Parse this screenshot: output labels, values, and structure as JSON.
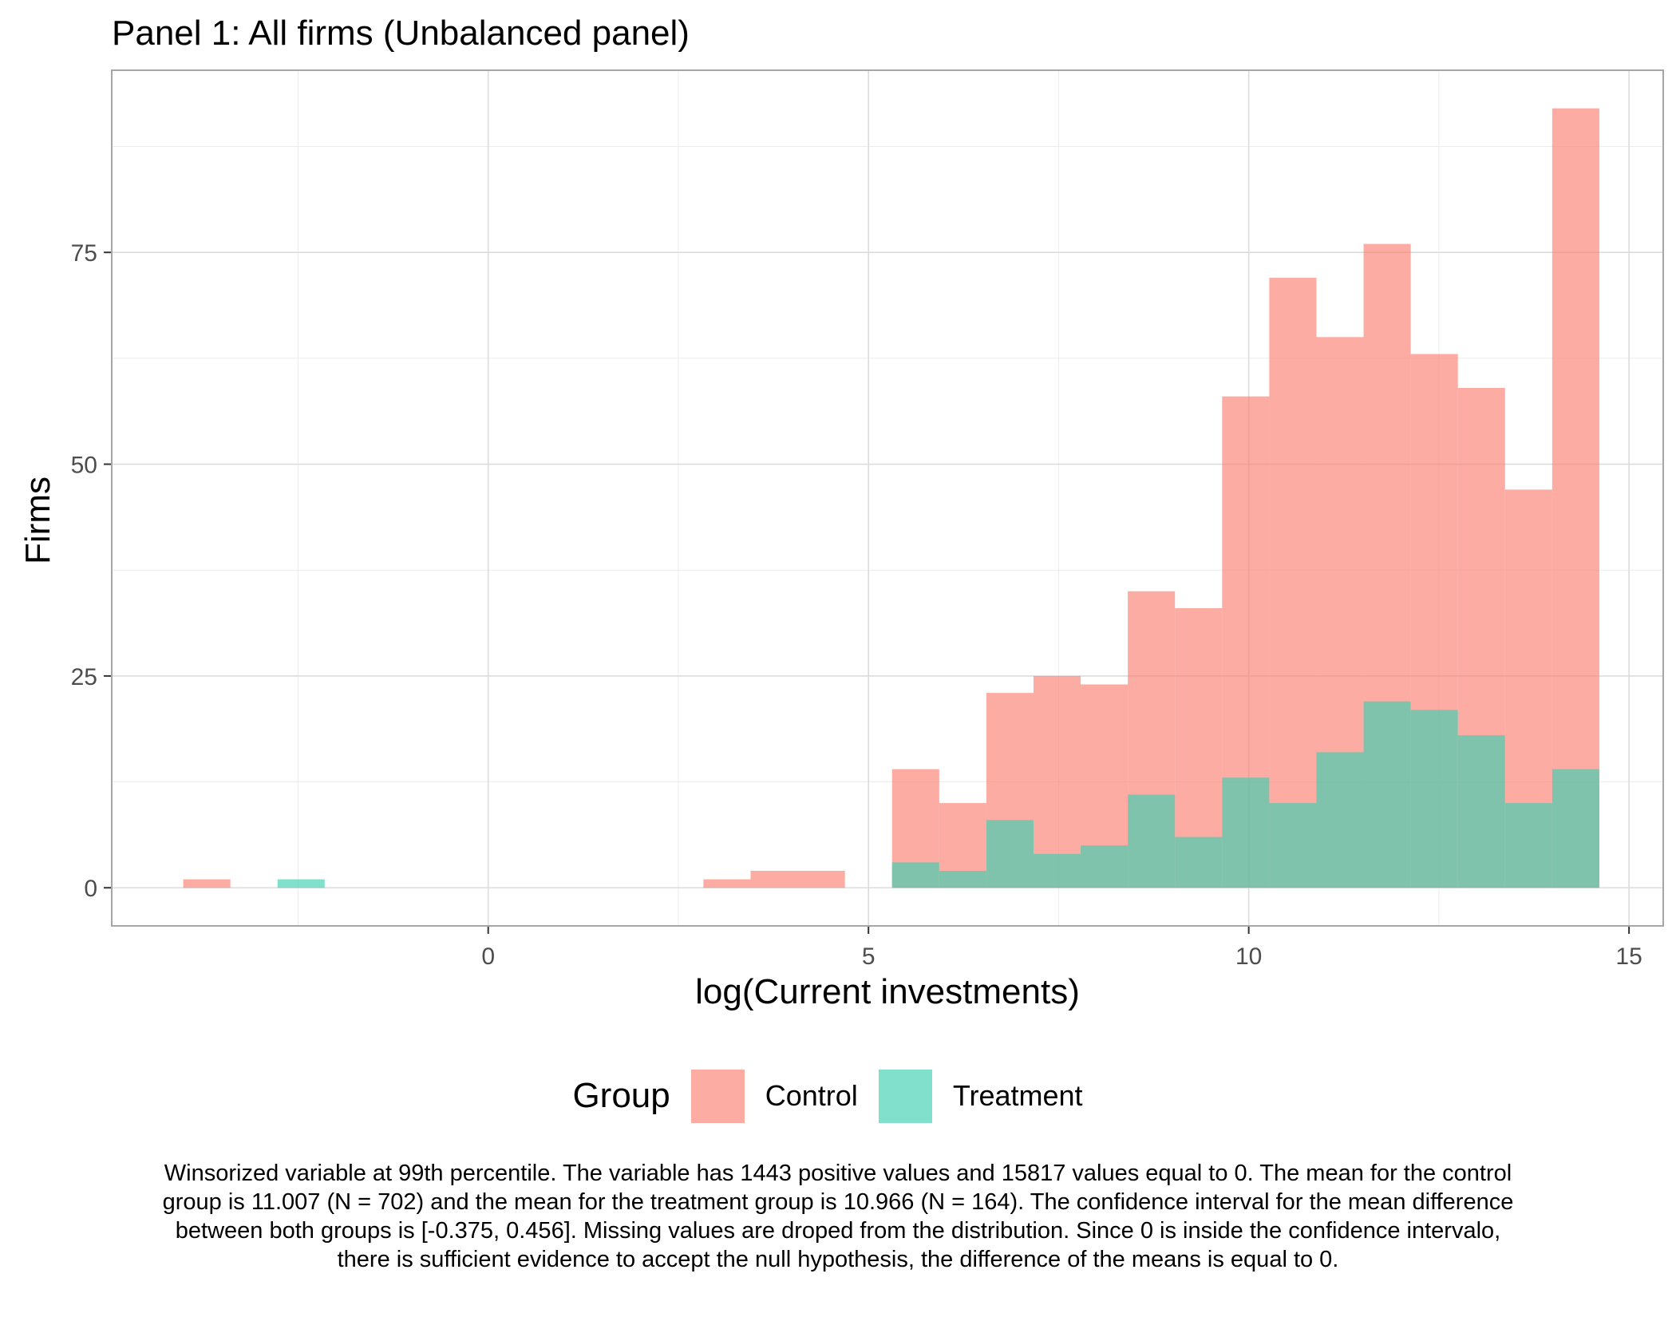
{
  "chart_data": {
    "type": "bar",
    "title": "Panel 1: All firms (Unbalanced panel)",
    "xlabel": "log(Current investments)",
    "ylabel": "Firms",
    "xlim": [
      -4.95,
      15.45
    ],
    "ylim": [
      -4.5,
      96.5
    ],
    "x_ticks": [
      0,
      5,
      10,
      15
    ],
    "y_ticks": [
      0,
      25,
      50,
      75
    ],
    "grid": true,
    "legend_title": "Group",
    "legend_position": "bottom",
    "bin_width": 0.62,
    "series": [
      {
        "name": "Control",
        "color": "#FA8072",
        "bins": [
          {
            "x": -3.7,
            "count": 1
          },
          {
            "x": 3.14,
            "count": 1
          },
          {
            "x": 3.76,
            "count": 2
          },
          {
            "x": 4.38,
            "count": 2
          },
          {
            "x": 5.62,
            "count": 14
          },
          {
            "x": 6.24,
            "count": 10
          },
          {
            "x": 6.86,
            "count": 23
          },
          {
            "x": 7.48,
            "count": 25
          },
          {
            "x": 8.1,
            "count": 24
          },
          {
            "x": 8.72,
            "count": 35
          },
          {
            "x": 9.34,
            "count": 33
          },
          {
            "x": 9.96,
            "count": 58
          },
          {
            "x": 10.58,
            "count": 72
          },
          {
            "x": 11.2,
            "count": 65
          },
          {
            "x": 11.82,
            "count": 76
          },
          {
            "x": 12.44,
            "count": 63
          },
          {
            "x": 13.06,
            "count": 59
          },
          {
            "x": 13.68,
            "count": 47
          },
          {
            "x": 14.3,
            "count": 92
          }
        ]
      },
      {
        "name": "Treatment",
        "color": "#3CCFB0",
        "bins": [
          {
            "x": -2.46,
            "count": 1
          },
          {
            "x": 5.62,
            "count": 3
          },
          {
            "x": 6.24,
            "count": 2
          },
          {
            "x": 6.86,
            "count": 8
          },
          {
            "x": 7.48,
            "count": 4
          },
          {
            "x": 8.1,
            "count": 5
          },
          {
            "x": 8.72,
            "count": 11
          },
          {
            "x": 9.34,
            "count": 6
          },
          {
            "x": 9.96,
            "count": 13
          },
          {
            "x": 10.58,
            "count": 10
          },
          {
            "x": 11.2,
            "count": 16
          },
          {
            "x": 11.82,
            "count": 22
          },
          {
            "x": 12.44,
            "count": 21
          },
          {
            "x": 13.06,
            "count": 18
          },
          {
            "x": 13.68,
            "count": 10
          },
          {
            "x": 14.3,
            "count": 14
          }
        ]
      }
    ],
    "caption": "Winsorized variable at 99th percentile. The variable has 1443 positive values and 15817 values equal to 0. The mean for the control group is 11.007 (N = 702) and the mean for the treatment group is 10.966 (N = 164). The confidence interval for the mean difference between both groups is [-0.375, 0.456]. Missing values are droped from the distribution. Since 0 is inside the confidence intervalo, there is sufficient evidence to accept the null hypothesis, the difference of the means is equal to 0."
  }
}
